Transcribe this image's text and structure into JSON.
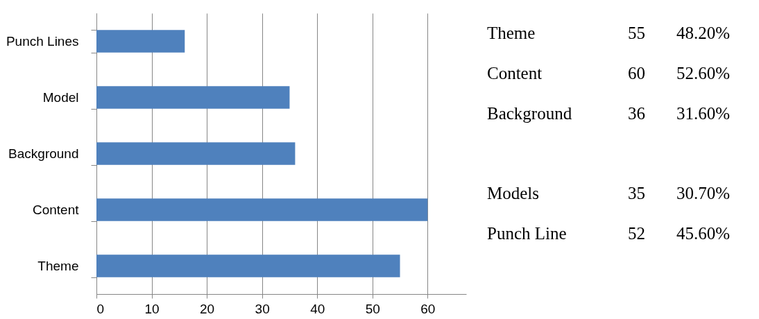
{
  "chart_data": [
    {
      "type": "bar",
      "orientation": "horizontal",
      "categories": [
        "Punch Lines",
        "Model",
        "Background",
        "Content",
        "Theme"
      ],
      "values": [
        16,
        35,
        36,
        60,
        55
      ],
      "color": "#4f81bd",
      "xlim": [
        0,
        67
      ],
      "xticks": [
        0,
        10,
        20,
        30,
        40,
        50,
        60
      ],
      "grid": "x"
    },
    {
      "type": "other",
      "annotations": [
        "Theme",
        "55",
        "48.20%",
        "Content",
        "60",
        "52.60%",
        "Background",
        "36",
        "31.60%",
        "Models",
        "35",
        "30.70%",
        "Punch Line",
        "52",
        "45.60%"
      ]
    }
  ]
}
